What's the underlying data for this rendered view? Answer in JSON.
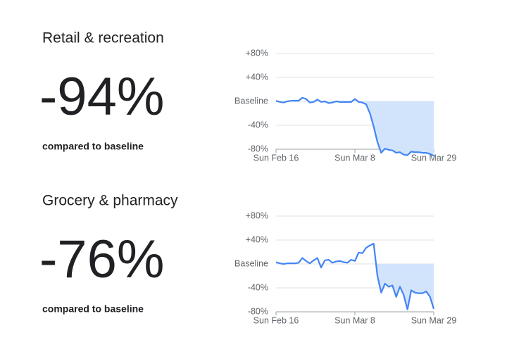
{
  "chart_data": [
    {
      "type": "line",
      "title": "Retail & recreation",
      "headline": "-94%",
      "subtitle": "compared to baseline",
      "color": "#4285f4",
      "area_color": "#d2e3fc",
      "values": [
        1,
        -1,
        -2,
        0,
        1,
        1,
        1,
        6,
        4,
        -2,
        -1,
        3,
        -1,
        0,
        -3,
        -2,
        0,
        -1,
        -1,
        -1,
        -1,
        4,
        -1,
        -2,
        -5,
        -20,
        -42,
        -68,
        -86,
        -79,
        -81,
        -82,
        -86,
        -85,
        -89,
        -90,
        -84,
        -85,
        -85,
        -86,
        -86,
        -88,
        -91
      ],
      "xlim": [
        0,
        42
      ],
      "xticks": [
        {
          "value": 0,
          "label": "Sun Feb 16"
        },
        {
          "value": 21,
          "label": "Sun Mar 8"
        },
        {
          "value": 42,
          "label": "Sun Mar 29"
        }
      ],
      "ylim": [
        -80,
        80
      ],
      "yticks": [
        {
          "value": -80,
          "label": "-80%"
        },
        {
          "value": -40,
          "label": "-40%"
        },
        {
          "value": 0,
          "label": "Baseline"
        },
        {
          "value": 40,
          "label": "+40%"
        },
        {
          "value": 80,
          "label": "+80%"
        }
      ],
      "grid": true
    },
    {
      "type": "line",
      "title": "Grocery & pharmacy",
      "headline": "-76%",
      "subtitle": "compared to baseline",
      "color": "#4285f4",
      "area_color": "#d2e3fc",
      "values": [
        3,
        1,
        0,
        1,
        1,
        1,
        2,
        10,
        5,
        1,
        6,
        10,
        -6,
        6,
        7,
        2,
        4,
        5,
        3,
        2,
        7,
        5,
        19,
        18,
        27,
        31,
        34,
        -20,
        -48,
        -33,
        -38,
        -36,
        -55,
        -38,
        -52,
        -76,
        -44,
        -48,
        -49,
        -49,
        -46,
        -55,
        -75
      ],
      "xlim": [
        0,
        42
      ],
      "xticks": [
        {
          "value": 0,
          "label": "Sun Feb 16"
        },
        {
          "value": 21,
          "label": "Sun Mar 8"
        },
        {
          "value": 42,
          "label": "Sun Mar 29"
        }
      ],
      "ylim": [
        -80,
        80
      ],
      "yticks": [
        {
          "value": -80,
          "label": "-80%"
        },
        {
          "value": -40,
          "label": "-40%"
        },
        {
          "value": 0,
          "label": "Baseline"
        },
        {
          "value": 40,
          "label": "+40%"
        },
        {
          "value": 80,
          "label": "+80%"
        }
      ],
      "grid": true
    }
  ]
}
